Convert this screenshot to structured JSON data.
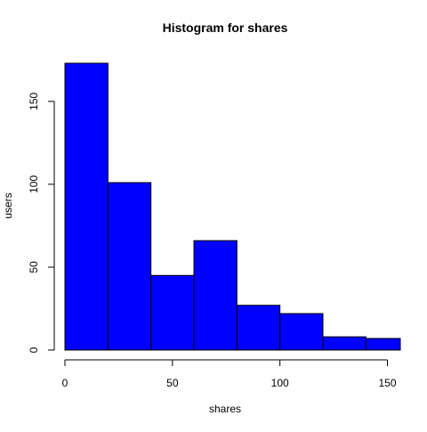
{
  "chart_data": {
    "type": "bar",
    "title": "Histogram for shares",
    "xlabel": "shares",
    "ylabel": "users",
    "bins": [
      {
        "x0": 0,
        "x1": 20,
        "count": 173
      },
      {
        "x0": 20,
        "x1": 40,
        "count": 101
      },
      {
        "x0": 40,
        "x1": 60,
        "count": 45
      },
      {
        "x0": 60,
        "x1": 80,
        "count": 66
      },
      {
        "x0": 80,
        "x1": 100,
        "count": 27
      },
      {
        "x0": 100,
        "x1": 120,
        "count": 22
      },
      {
        "x0": 120,
        "x1": 140,
        "count": 8
      },
      {
        "x0": 140,
        "x1": 156,
        "count": 7
      }
    ],
    "xlim": [
      0,
      156
    ],
    "ylim": [
      0,
      173
    ],
    "x_ticks": [
      0,
      50,
      100,
      150
    ],
    "y_ticks": [
      0,
      50,
      100,
      150
    ],
    "bar_color": "#0000ff",
    "bar_edge_color": "#000000",
    "grid": false,
    "legend": "none"
  }
}
